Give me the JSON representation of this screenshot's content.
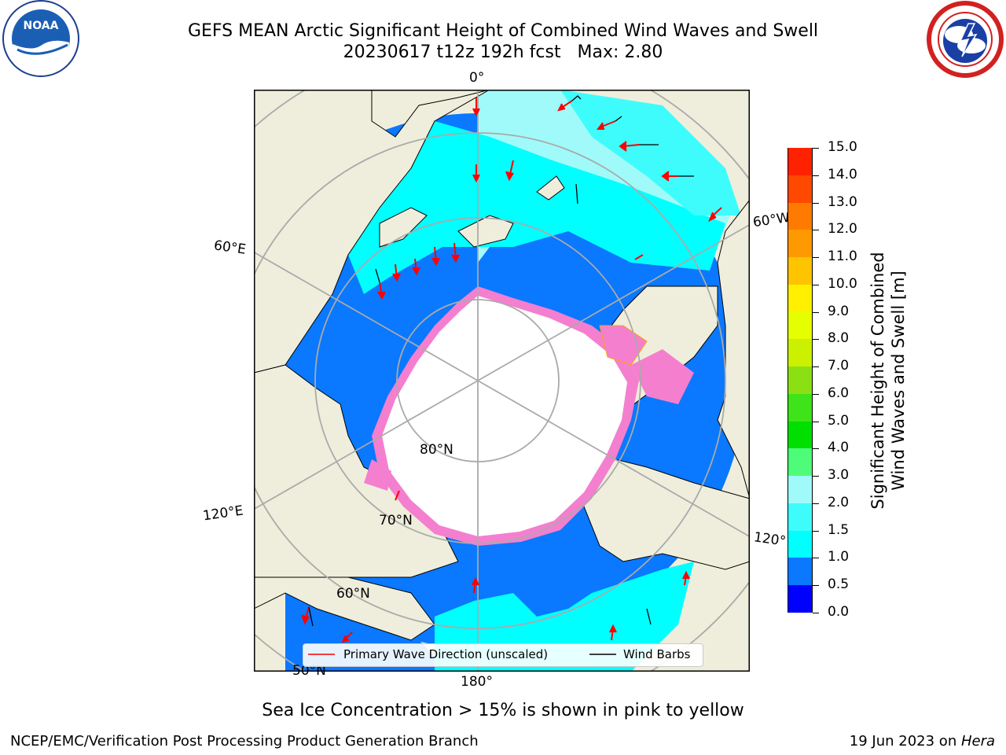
{
  "title": {
    "line1": "GEFS MEAN Arctic Significant Height of Combined Wind Waves and Swell",
    "line2": "20230617 t12z 192h fcst   Max: 2.80"
  },
  "logos": {
    "left": "noaa-logo",
    "left_text": "NOAA",
    "right": "nws-logo"
  },
  "map": {
    "projection": "north-polar-stereographic",
    "lon_labels": {
      "top": "0°",
      "upper_left": "60°E",
      "upper_right": "60°W",
      "lower_left": "120°E",
      "lower_right": "120°",
      "bottom": "180°"
    },
    "lat_labels": {
      "inner": "80°N",
      "middle": "70°N",
      "outer": "60°N",
      "edge": "50°N"
    },
    "colors": {
      "land": "#efeedc",
      "ocean_no_data": "#ffffff",
      "ice": "#f47fcf",
      "grid": "#aaaaaa",
      "wave_arrow": "#ff0000",
      "wind_barb": "#000000"
    }
  },
  "colorbar": {
    "title_line1": "Significant Height of Combined",
    "title_line2": "Wind Waves and Swell [m]",
    "ticks": [
      "0.0",
      "0.5",
      "1.0",
      "1.5",
      "2.0",
      "3.0",
      "4.0",
      "5.0",
      "6.0",
      "7.0",
      "8.0",
      "9.0",
      "10.0",
      "11.0",
      "12.0",
      "13.0",
      "14.0",
      "15.0"
    ],
    "colors": [
      "#0000ff",
      "#0a78ff",
      "#00ffff",
      "#3ffcfc",
      "#a0fafa",
      "#4efc7a",
      "#00e000",
      "#3ee31a",
      "#8be013",
      "#cbf000",
      "#e5ff00",
      "#fff000",
      "#ffc400",
      "#ff9900",
      "#ff7a00",
      "#ff4800",
      "#ff2200"
    ]
  },
  "legend": {
    "wave_label": "Primary Wave Direction (unscaled)",
    "wind_label": "Wind Barbs"
  },
  "caption": "Sea Ice Concentration > 15% is shown in pink to yellow",
  "footer": {
    "left": "NCEP/EMC/Verification Post Processing Product Generation Branch",
    "right_prefix": "19 Jun 2023 on ",
    "right_host": "Hera"
  }
}
